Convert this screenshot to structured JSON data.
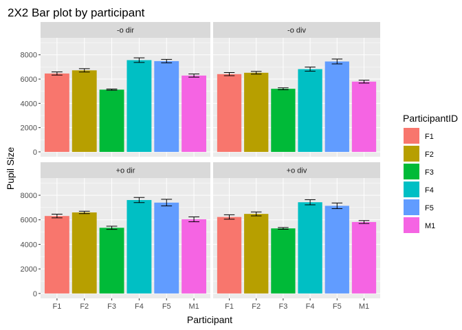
{
  "chart_data": {
    "type": "bar",
    "title": "2X2 Bar plot by participant",
    "xlabel": "Participant",
    "ylabel": "Pupil Size",
    "categories": [
      "F1",
      "F2",
      "F3",
      "F4",
      "F5",
      "M1"
    ],
    "colors": [
      "#F8766D",
      "#B79F00",
      "#00BA38",
      "#00BFC4",
      "#619CFF",
      "#F564E3"
    ],
    "ylim": [
      -400,
      9400
    ],
    "yticks": [
      0,
      2000,
      4000,
      6000,
      8000
    ],
    "grid": true,
    "legend": {
      "title": "ParticipantID",
      "position": "right",
      "entries": [
        "F1",
        "F2",
        "F3",
        "F4",
        "F5",
        "M1"
      ]
    },
    "panels": [
      {
        "label": "-o dir",
        "values": [
          6460,
          6720,
          5130,
          7560,
          7480,
          6290
        ],
        "errors": [
          130,
          140,
          50,
          190,
          140,
          130
        ]
      },
      {
        "label": "-o div",
        "values": [
          6410,
          6520,
          5200,
          6820,
          7450,
          5790
        ],
        "errors": [
          130,
          110,
          80,
          170,
          200,
          120
        ]
      },
      {
        "label": "+o dir",
        "values": [
          6310,
          6600,
          5350,
          7610,
          7400,
          6040
        ],
        "errors": [
          150,
          100,
          130,
          210,
          270,
          200
        ]
      },
      {
        "label": "+o div",
        "values": [
          6230,
          6480,
          5300,
          7430,
          7140,
          5820
        ],
        "errors": [
          180,
          160,
          70,
          210,
          230,
          120
        ]
      }
    ]
  }
}
